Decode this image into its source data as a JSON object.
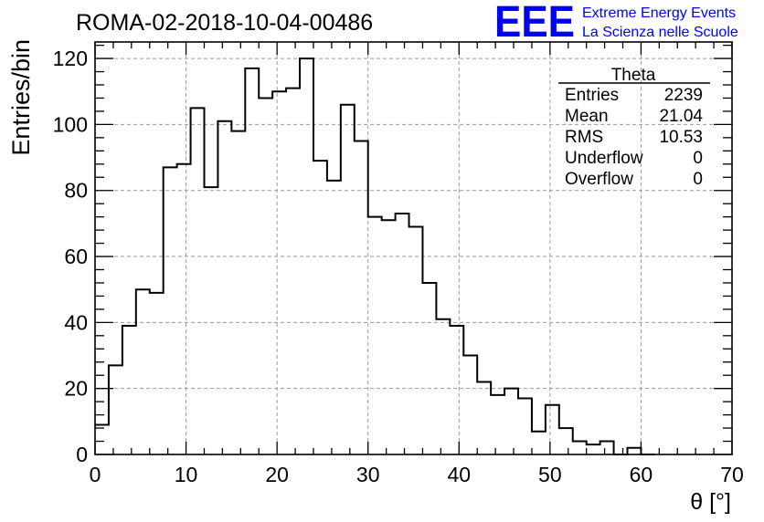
{
  "header": {
    "run_title": "ROMA-02-2018-10-04-00486",
    "logo_text": "EEE",
    "logo_line1": "Extreme Energy Events",
    "logo_line2": "La Scienza nelle Scuole",
    "logo_color": "#0000ff"
  },
  "stats_box": {
    "title": "Theta",
    "rows": [
      {
        "label": "Entries",
        "value": "2239"
      },
      {
        "label": "Mean",
        "value": "21.04"
      },
      {
        "label": "RMS",
        "value": "10.53"
      },
      {
        "label": "Underflow",
        "value": "0"
      },
      {
        "label": "Overflow",
        "value": "0"
      }
    ]
  },
  "chart_data": {
    "type": "bar",
    "style": "step-histogram",
    "title": "ROMA-02-2018-10-04-00486",
    "xlabel": "θ [°]",
    "ylabel": "Entries/bin",
    "xlim": [
      0,
      70
    ],
    "ylim": [
      0,
      125
    ],
    "bin_width": 1.5,
    "x_ticks": [
      0,
      10,
      20,
      30,
      40,
      50,
      60,
      70
    ],
    "y_ticks": [
      0,
      20,
      40,
      60,
      80,
      100,
      120
    ],
    "grid": true,
    "line_color": "#000000",
    "bin_edges_start": 0,
    "values": [
      9,
      27,
      39,
      50,
      49,
      87,
      88,
      105,
      81,
      101,
      98,
      117,
      108,
      110,
      111,
      120,
      89,
      83,
      106,
      95,
      72,
      71,
      73,
      69,
      52,
      41,
      39,
      30,
      22,
      18,
      20,
      17,
      7,
      15,
      8,
      4,
      3,
      4,
      0,
      2,
      0
    ]
  }
}
